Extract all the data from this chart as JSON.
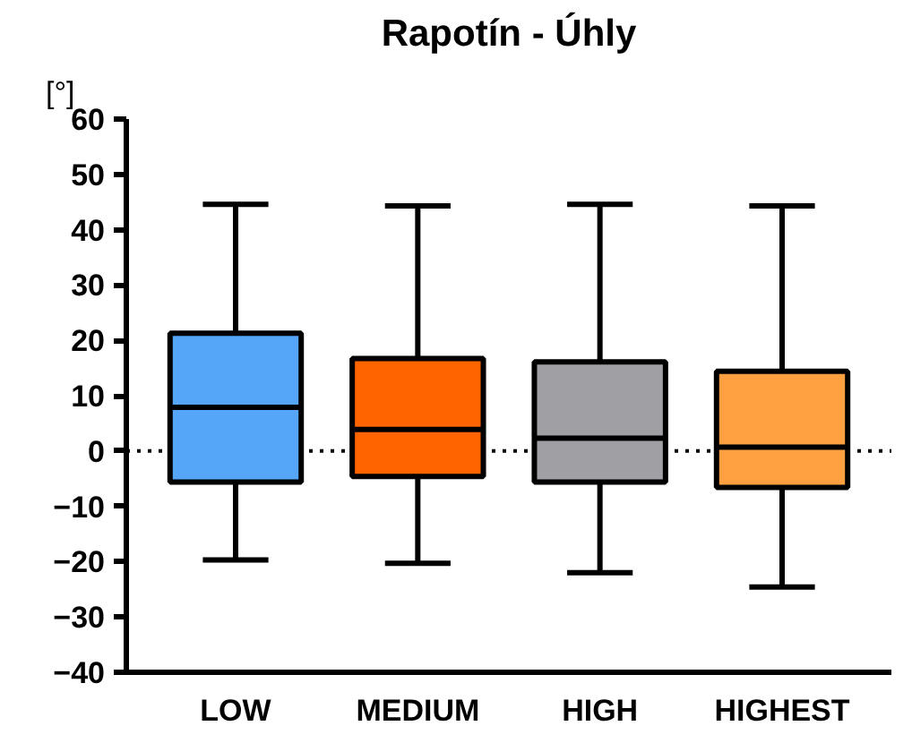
{
  "chart_data": {
    "type": "box",
    "title": "Rapotín - Úhly",
    "ylabel": "[°]",
    "categories": [
      "LOW",
      "MEDIUM",
      "HIGH",
      "HIGHEST"
    ],
    "colors": [
      "#55a5f8",
      "#fe6400",
      "#a0a0a4",
      "#ffa040"
    ],
    "boxes": [
      {
        "low": -19.7,
        "q1": -5.6,
        "median": 7.9,
        "q3": 21.3,
        "high": 44.6
      },
      {
        "low": -20.3,
        "q1": -4.6,
        "median": 3.9,
        "q3": 16.7,
        "high": 44.3
      },
      {
        "low": -22.0,
        "q1": -5.6,
        "median": 2.3,
        "q3": 16.1,
        "high": 44.6
      },
      {
        "low": -24.6,
        "q1": -6.6,
        "median": 0.7,
        "q3": 14.4,
        "high": 44.3
      }
    ],
    "ylim": [
      -40,
      60
    ],
    "yticks": [
      -40,
      -30,
      -20,
      -10,
      0,
      10,
      20,
      30,
      40,
      50,
      60
    ],
    "ref_lines": [
      {
        "axis": "y",
        "value": 0,
        "line_style": "dotted",
        "color": "#000000"
      }
    ],
    "grid": false
  }
}
